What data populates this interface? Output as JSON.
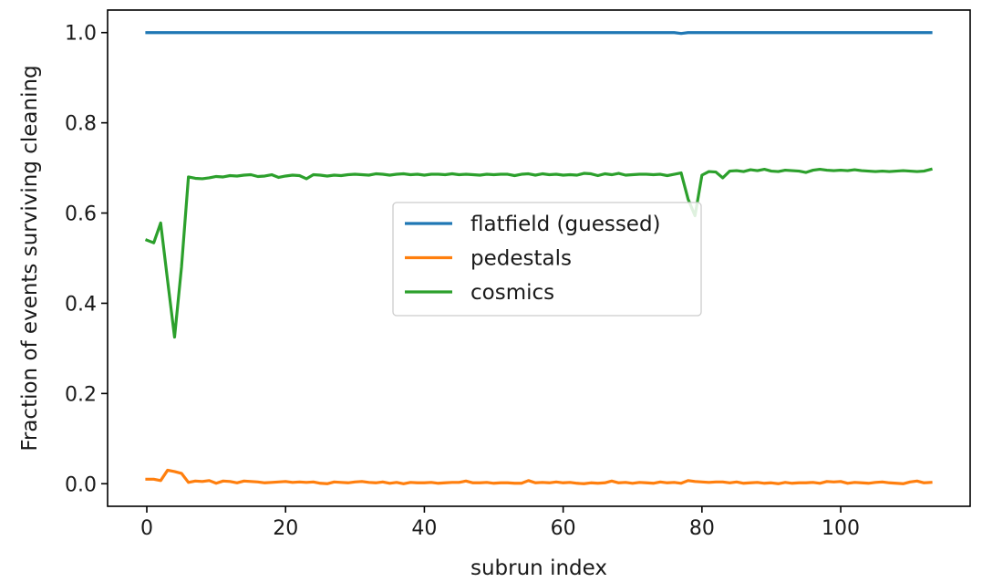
{
  "chart_data": {
    "type": "line",
    "title": "",
    "xlabel": "subrun index",
    "ylabel": "Fraction of events surviving cleaning",
    "xlim": [
      -5.65,
      118.65
    ],
    "ylim": [
      -0.05,
      1.05
    ],
    "xticks": [
      0,
      20,
      40,
      60,
      80,
      100
    ],
    "xtick_labels": [
      "0",
      "20",
      "40",
      "60",
      "80",
      "100"
    ],
    "yticks": [
      0.0,
      0.2,
      0.4,
      0.6,
      0.8,
      1.0
    ],
    "ytick_labels": [
      "0.0",
      "0.2",
      "0.4",
      "0.6",
      "0.8",
      "1.0"
    ],
    "grid": false,
    "legend_position": "center",
    "series": [
      {
        "name": "flatfield (guessed)",
        "color": "#1f77b4",
        "x": [
          0,
          10,
          20,
          30,
          40,
          50,
          60,
          70,
          76,
          77,
          78,
          90,
          100,
          113
        ],
        "y": [
          1.0,
          1.0,
          1.0,
          1.0,
          1.0,
          1.0,
          1.0,
          1.0,
          1.0,
          0.998,
          1.0,
          1.0,
          1.0,
          1.0
        ]
      },
      {
        "name": "pedestals",
        "color": "#ff7f0e",
        "x": [
          0,
          1,
          2,
          3,
          4,
          5,
          6,
          7,
          8,
          9,
          10,
          11,
          12,
          13,
          14,
          15,
          16,
          17,
          18,
          19,
          20,
          21,
          22,
          23,
          24,
          25,
          26,
          27,
          28,
          29,
          30,
          31,
          32,
          33,
          34,
          35,
          36,
          37,
          38,
          39,
          40,
          41,
          42,
          43,
          44,
          45,
          46,
          47,
          48,
          49,
          50,
          51,
          52,
          53,
          54,
          55,
          56,
          57,
          58,
          59,
          60,
          61,
          62,
          63,
          64,
          65,
          66,
          67,
          68,
          69,
          70,
          71,
          72,
          73,
          74,
          75,
          76,
          77,
          78,
          79,
          80,
          81,
          82,
          83,
          84,
          85,
          86,
          87,
          88,
          89,
          90,
          91,
          92,
          93,
          94,
          95,
          96,
          97,
          98,
          99,
          100,
          101,
          102,
          103,
          104,
          105,
          106,
          107,
          108,
          109,
          110,
          111,
          112,
          113
        ],
        "y": [
          0.01,
          0.01,
          0.007,
          0.03,
          0.027,
          0.023,
          0.003,
          0.006,
          0.005,
          0.007,
          0.001,
          0.006,
          0.005,
          0.002,
          0.006,
          0.005,
          0.004,
          0.002,
          0.003,
          0.004,
          0.005,
          0.003,
          0.004,
          0.003,
          0.004,
          0.001,
          0.0,
          0.004,
          0.003,
          0.002,
          0.004,
          0.005,
          0.003,
          0.002,
          0.004,
          0.001,
          0.003,
          0.0,
          0.003,
          0.002,
          0.002,
          0.003,
          0.001,
          0.002,
          0.003,
          0.003,
          0.006,
          0.002,
          0.002,
          0.003,
          0.001,
          0.002,
          0.002,
          0.001,
          0.001,
          0.007,
          0.002,
          0.003,
          0.002,
          0.004,
          0.002,
          0.003,
          0.001,
          0.0,
          0.002,
          0.001,
          0.002,
          0.006,
          0.002,
          0.003,
          0.001,
          0.003,
          0.002,
          0.001,
          0.004,
          0.002,
          0.003,
          0.001,
          0.007,
          0.005,
          0.004,
          0.003,
          0.004,
          0.004,
          0.002,
          0.004,
          0.001,
          0.002,
          0.003,
          0.001,
          0.002,
          0.0,
          0.003,
          0.001,
          0.002,
          0.002,
          0.003,
          0.001,
          0.005,
          0.004,
          0.005,
          0.001,
          0.003,
          0.002,
          0.001,
          0.003,
          0.004,
          0.002,
          0.001,
          0.0,
          0.004,
          0.006,
          0.002,
          0.003
        ]
      },
      {
        "name": "cosmics",
        "color": "#2ca02c",
        "x": [
          0,
          1,
          2,
          3,
          4,
          5,
          6,
          7,
          8,
          9,
          10,
          11,
          12,
          13,
          14,
          15,
          16,
          17,
          18,
          19,
          20,
          21,
          22,
          23,
          24,
          25,
          26,
          27,
          28,
          29,
          30,
          31,
          32,
          33,
          34,
          35,
          36,
          37,
          38,
          39,
          40,
          41,
          42,
          43,
          44,
          45,
          46,
          47,
          48,
          49,
          50,
          51,
          52,
          53,
          54,
          55,
          56,
          57,
          58,
          59,
          60,
          61,
          62,
          63,
          64,
          65,
          66,
          67,
          68,
          69,
          70,
          71,
          72,
          73,
          74,
          75,
          76,
          77,
          78,
          79,
          80,
          81,
          82,
          83,
          84,
          85,
          86,
          87,
          88,
          89,
          90,
          91,
          92,
          93,
          94,
          95,
          96,
          97,
          98,
          99,
          100,
          101,
          102,
          103,
          104,
          105,
          106,
          107,
          108,
          109,
          110,
          111,
          112,
          113
        ],
        "y": [
          0.54,
          0.534,
          0.578,
          0.45,
          0.325,
          0.48,
          0.68,
          0.677,
          0.676,
          0.678,
          0.681,
          0.68,
          0.683,
          0.682,
          0.684,
          0.685,
          0.681,
          0.682,
          0.685,
          0.679,
          0.682,
          0.684,
          0.683,
          0.676,
          0.685,
          0.684,
          0.682,
          0.684,
          0.683,
          0.685,
          0.686,
          0.685,
          0.684,
          0.687,
          0.686,
          0.684,
          0.686,
          0.687,
          0.685,
          0.686,
          0.684,
          0.686,
          0.686,
          0.685,
          0.687,
          0.685,
          0.686,
          0.685,
          0.684,
          0.686,
          0.685,
          0.686,
          0.686,
          0.683,
          0.686,
          0.687,
          0.684,
          0.687,
          0.685,
          0.686,
          0.684,
          0.685,
          0.684,
          0.688,
          0.687,
          0.683,
          0.687,
          0.685,
          0.688,
          0.684,
          0.685,
          0.686,
          0.686,
          0.685,
          0.686,
          0.683,
          0.686,
          0.689,
          0.631,
          0.594,
          0.684,
          0.692,
          0.691,
          0.678,
          0.693,
          0.694,
          0.692,
          0.696,
          0.694,
          0.697,
          0.693,
          0.692,
          0.695,
          0.694,
          0.693,
          0.69,
          0.695,
          0.697,
          0.695,
          0.694,
          0.695,
          0.694,
          0.696,
          0.694,
          0.693,
          0.692,
          0.693,
          0.692,
          0.693,
          0.694,
          0.693,
          0.692,
          0.693,
          0.697
        ]
      }
    ]
  }
}
